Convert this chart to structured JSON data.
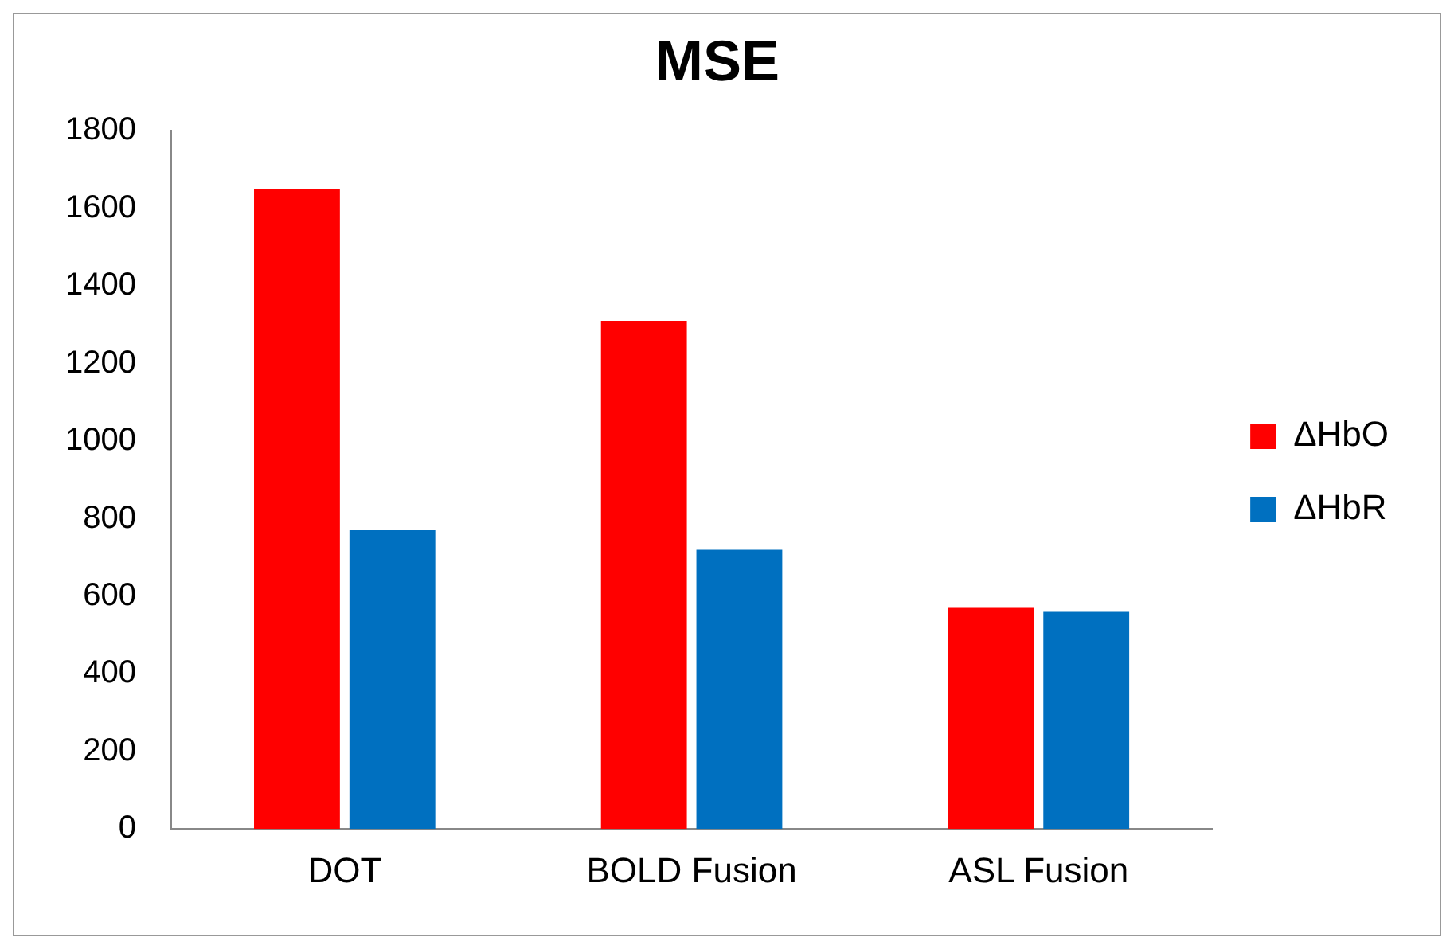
{
  "chart_data": {
    "type": "bar",
    "title": "MSE",
    "categories": [
      "DOT",
      "BOLD Fusion",
      "ASL Fusion"
    ],
    "series": [
      {
        "name": "ΔHbO",
        "color": "#ff0000",
        "values": [
          1650,
          1310,
          570
        ]
      },
      {
        "name": "ΔHbR",
        "color": "#0070c0",
        "values": [
          770,
          720,
          560
        ]
      }
    ],
    "ylim": [
      0,
      1800
    ],
    "yticks": [
      0,
      200,
      400,
      600,
      800,
      1000,
      1200,
      1400,
      1600,
      1800
    ],
    "grid": false,
    "legend": "right"
  }
}
